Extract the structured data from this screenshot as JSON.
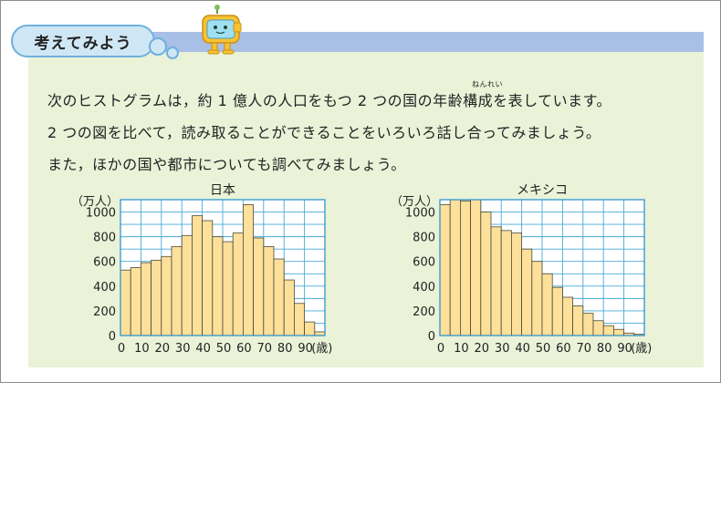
{
  "header": {
    "title": "考えてみよう"
  },
  "text": {
    "line1": "次のヒストグラムは，約 1 億人の人口をもつ 2 つの国の年齢構成を表しています。",
    "ruby": "ねんれい",
    "line2": "2 つの図を比べて，読み取ることができることをいろいろ話し合ってみましょう。",
    "line3": "また，ほかの国や都市についても調べてみましょう。"
  },
  "colors": {
    "bar": "#fde09a",
    "grid": "#49a8d8",
    "axis": "#1f8ed0",
    "panel": "#eaf2d8",
    "header_bar": "#a8bfe6"
  },
  "icons": {
    "mascot": "robot-mascot-icon"
  },
  "chart_data": [
    {
      "type": "bar",
      "title": "日本",
      "ylabel": "（万人）",
      "xlabel": "(歳)",
      "ylim": [
        0,
        1100
      ],
      "xlim": [
        0,
        100
      ],
      "yticks": [
        0,
        200,
        400,
        600,
        800,
        1000
      ],
      "xticks": [
        0,
        10,
        20,
        30,
        40,
        50,
        60,
        70,
        80,
        90
      ],
      "bin_width": 5,
      "grid": true,
      "values": [
        530,
        550,
        590,
        610,
        640,
        720,
        810,
        970,
        930,
        800,
        760,
        830,
        1060,
        790,
        720,
        620,
        450,
        260,
        110,
        30
      ]
    },
    {
      "type": "bar",
      "title": "メキシコ",
      "ylabel": "（万人）",
      "xlabel": "(歳)",
      "ylim": [
        0,
        1100
      ],
      "xlim": [
        0,
        100
      ],
      "yticks": [
        0,
        200,
        400,
        600,
        800,
        1000
      ],
      "xticks": [
        0,
        10,
        20,
        30,
        40,
        50,
        60,
        70,
        80,
        90
      ],
      "bin_width": 5,
      "grid": true,
      "values": [
        1060,
        1100,
        1090,
        1100,
        1000,
        880,
        850,
        830,
        700,
        600,
        500,
        390,
        310,
        240,
        180,
        120,
        80,
        50,
        20,
        10
      ]
    }
  ]
}
